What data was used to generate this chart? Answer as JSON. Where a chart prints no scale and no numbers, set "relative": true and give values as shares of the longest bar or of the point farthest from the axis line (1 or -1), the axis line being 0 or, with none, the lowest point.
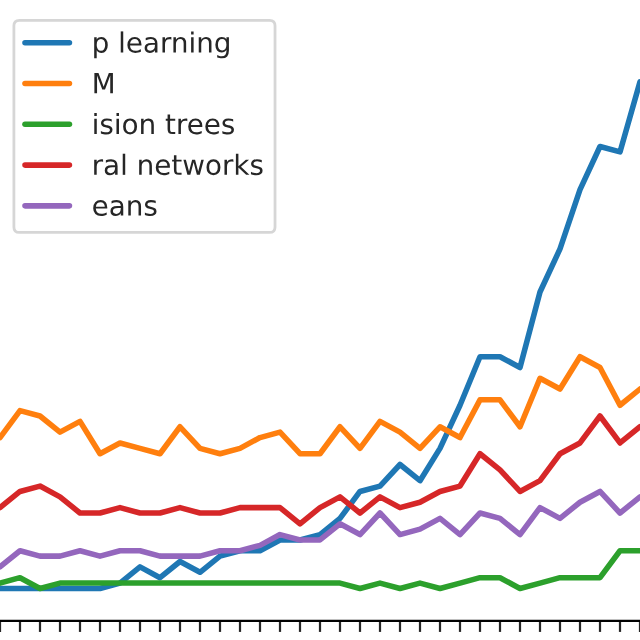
{
  "chart_data": {
    "type": "line",
    "relative": true,
    "legend": "top left",
    "grid": false,
    "categories": [
      null,
      null,
      null,
      null,
      null,
      null,
      null,
      null,
      null,
      null,
      null,
      null,
      null,
      null,
      null,
      null,
      null,
      null,
      null,
      null,
      null,
      null,
      null,
      null,
      null,
      null,
      null,
      null,
      null,
      null,
      null,
      null,
      null
    ],
    "series": [
      {
        "name": "p learning",
        "color": "#1f77b4",
        "values": [
          0.06,
          0.06,
          0.06,
          0.06,
          0.06,
          0.06,
          0.07,
          0.1,
          0.08,
          0.11,
          0.09,
          0.12,
          0.13,
          0.13,
          0.15,
          0.15,
          0.16,
          0.19,
          0.24,
          0.25,
          0.29,
          0.26,
          0.32,
          0.4,
          0.49,
          0.49,
          0.47,
          0.61,
          0.69,
          0.8,
          0.88,
          0.87,
          1.0
        ]
      },
      {
        "name": "M",
        "color": "#ff7f0e",
        "values": [
          0.34,
          0.39,
          0.38,
          0.35,
          0.37,
          0.31,
          0.33,
          0.32,
          0.31,
          0.36,
          0.32,
          0.31,
          0.32,
          0.34,
          0.35,
          0.31,
          0.31,
          0.36,
          0.32,
          0.37,
          0.35,
          0.32,
          0.36,
          0.34,
          0.41,
          0.41,
          0.36,
          0.45,
          0.43,
          0.49,
          0.47,
          0.4,
          0.43
        ]
      },
      {
        "name": "ision trees",
        "color": "#2ca02c",
        "values": [
          0.07,
          0.08,
          0.06,
          0.07,
          0.07,
          0.07,
          0.07,
          0.07,
          0.07,
          0.07,
          0.07,
          0.07,
          0.07,
          0.07,
          0.07,
          0.07,
          0.07,
          0.07,
          0.06,
          0.07,
          0.06,
          0.07,
          0.06,
          0.07,
          0.08,
          0.08,
          0.06,
          0.07,
          0.08,
          0.08,
          0.08,
          0.13,
          0.13
        ]
      },
      {
        "name": "ral networks",
        "color": "#d62728",
        "values": [
          0.21,
          0.24,
          0.25,
          0.23,
          0.2,
          0.2,
          0.21,
          0.2,
          0.2,
          0.21,
          0.2,
          0.2,
          0.21,
          0.21,
          0.21,
          0.18,
          0.21,
          0.23,
          0.2,
          0.23,
          0.21,
          0.22,
          0.24,
          0.25,
          0.31,
          0.28,
          0.24,
          0.26,
          0.31,
          0.33,
          0.38,
          0.33,
          0.36
        ]
      },
      {
        "name": "eans",
        "color": "#9467bd",
        "values": [
          0.1,
          0.13,
          0.12,
          0.12,
          0.13,
          0.12,
          0.13,
          0.13,
          0.12,
          0.12,
          0.12,
          0.13,
          0.13,
          0.14,
          0.16,
          0.15,
          0.15,
          0.18,
          0.16,
          0.2,
          0.16,
          0.17,
          0.19,
          0.16,
          0.2,
          0.19,
          0.16,
          0.21,
          0.19,
          0.22,
          0.24,
          0.2,
          0.23
        ]
      }
    ]
  }
}
